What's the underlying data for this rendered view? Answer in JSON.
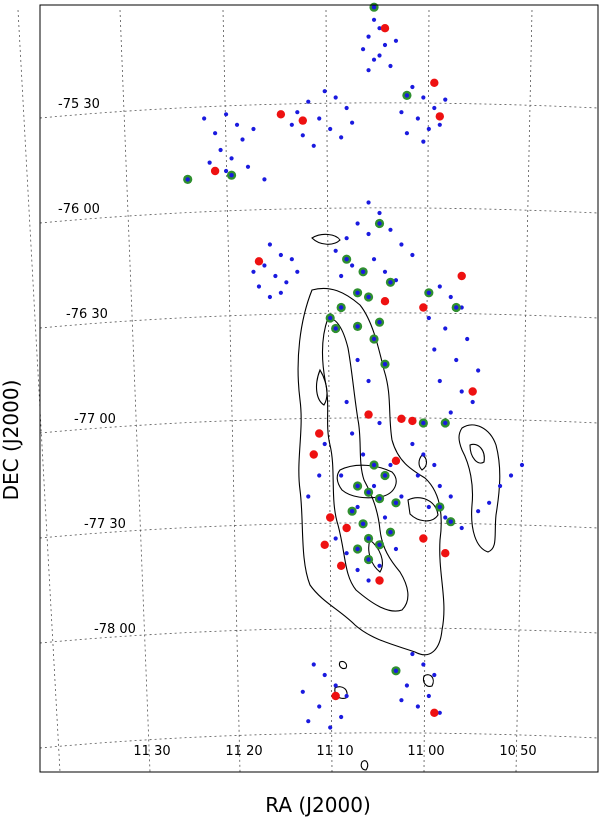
{
  "chart_data": {
    "type": "scatter",
    "xlabel": "RA (J2000)",
    "ylabel": "DEC (J2000)",
    "x_ticks": [
      "11 30",
      "11 20",
      "11 10",
      "11 00",
      "10 50"
    ],
    "y_ticks": [
      "-75 30",
      "-76 00",
      "-76 30",
      "-77 00",
      "-77 30",
      "-78 00"
    ],
    "grid": true,
    "colors": {
      "blue": "#1a1adf",
      "red": "#ee1111",
      "green": "#2f8f2f",
      "contour": "#000000"
    },
    "series": [
      {
        "color": "blue",
        "points": [
          [
            11.18,
            -75.42
          ],
          [
            11.16,
            -75.45
          ],
          [
            11.21,
            -75.47
          ],
          [
            11.23,
            -75.52
          ],
          [
            11.14,
            -75.5
          ],
          [
            11.19,
            -75.55
          ],
          [
            11.17,
            -75.6
          ],
          [
            11.22,
            -75.63
          ],
          [
            11.15,
            -75.64
          ],
          [
            11.2,
            -75.68
          ],
          [
            11.24,
            -75.58
          ],
          [
            11.13,
            -75.57
          ],
          [
            11.36,
            -75.53
          ],
          [
            11.34,
            -75.58
          ],
          [
            11.38,
            -75.62
          ],
          [
            11.33,
            -75.65
          ],
          [
            11.37,
            -75.7
          ],
          [
            11.35,
            -75.74
          ],
          [
            11.39,
            -75.76
          ],
          [
            11.32,
            -75.78
          ],
          [
            11.4,
            -75.55
          ],
          [
            11.31,
            -75.6
          ],
          [
            11.36,
            -75.8
          ],
          [
            11.29,
            -75.84
          ],
          [
            11.09,
            -75.08
          ],
          [
            11.08,
            -75.12
          ],
          [
            11.1,
            -75.16
          ],
          [
            11.07,
            -75.2
          ],
          [
            11.11,
            -75.22
          ],
          [
            11.09,
            -75.27
          ],
          [
            11.06,
            -75.3
          ],
          [
            11.1,
            -75.32
          ],
          [
            11.08,
            -75.25
          ],
          [
            11.05,
            -75.18
          ],
          [
            11.02,
            -75.4
          ],
          [
            11.0,
            -75.45
          ],
          [
            10.98,
            -75.5
          ],
          [
            11.01,
            -75.55
          ],
          [
            10.99,
            -75.6
          ],
          [
            11.03,
            -75.62
          ],
          [
            10.97,
            -75.58
          ],
          [
            11.04,
            -75.52
          ],
          [
            10.96,
            -75.46
          ],
          [
            11.0,
            -75.66
          ],
          [
            11.28,
            -76.15
          ],
          [
            11.26,
            -76.2
          ],
          [
            11.29,
            -76.25
          ],
          [
            11.27,
            -76.3
          ],
          [
            11.25,
            -76.33
          ],
          [
            11.3,
            -76.35
          ],
          [
            11.24,
            -76.22
          ],
          [
            11.23,
            -76.28
          ],
          [
            11.28,
            -76.4
          ],
          [
            11.26,
            -76.38
          ],
          [
            11.31,
            -76.28
          ],
          [
            11.1,
            -75.95
          ],
          [
            11.08,
            -76.0
          ],
          [
            11.12,
            -76.05
          ],
          [
            11.06,
            -76.08
          ],
          [
            11.14,
            -76.12
          ],
          [
            11.04,
            -76.15
          ],
          [
            11.1,
            -76.1
          ],
          [
            11.16,
            -76.18
          ],
          [
            11.02,
            -76.2
          ],
          [
            11.09,
            -76.22
          ],
          [
            11.13,
            -76.25
          ],
          [
            11.07,
            -76.28
          ],
          [
            11.05,
            -76.32
          ],
          [
            11.15,
            -76.3
          ],
          [
            10.97,
            -76.35
          ],
          [
            10.95,
            -76.4
          ],
          [
            10.93,
            -76.45
          ],
          [
            10.99,
            -76.5
          ],
          [
            10.96,
            -76.55
          ],
          [
            10.92,
            -76.6
          ],
          [
            10.98,
            -76.65
          ],
          [
            10.94,
            -76.7
          ],
          [
            10.9,
            -76.75
          ],
          [
            10.97,
            -76.8
          ],
          [
            10.93,
            -76.85
          ],
          [
            10.91,
            -76.9
          ],
          [
            10.95,
            -76.95
          ],
          [
            11.12,
            -76.7
          ],
          [
            11.1,
            -76.8
          ],
          [
            11.14,
            -76.9
          ],
          [
            11.08,
            -77.0
          ],
          [
            11.13,
            -77.05
          ],
          [
            11.11,
            -77.15
          ],
          [
            11.06,
            -77.2
          ],
          [
            11.15,
            -77.25
          ],
          [
            11.09,
            -77.3
          ],
          [
            11.04,
            -77.35
          ],
          [
            11.12,
            -77.4
          ],
          [
            11.07,
            -77.45
          ],
          [
            11.02,
            -77.1
          ],
          [
            11.0,
            -77.15
          ],
          [
            10.98,
            -77.2
          ],
          [
            11.01,
            -77.25
          ],
          [
            10.97,
            -77.3
          ],
          [
            10.95,
            -77.35
          ],
          [
            10.99,
            -77.4
          ],
          [
            10.96,
            -77.45
          ],
          [
            10.93,
            -77.5
          ],
          [
            10.9,
            -77.42
          ],
          [
            10.88,
            -77.38
          ],
          [
            10.86,
            -77.3
          ],
          [
            10.84,
            -77.25
          ],
          [
            10.82,
            -77.2
          ],
          [
            11.18,
            -77.1
          ],
          [
            11.2,
            -77.15
          ],
          [
            11.19,
            -77.25
          ],
          [
            11.21,
            -77.35
          ],
          [
            11.17,
            -77.45
          ],
          [
            11.16,
            -77.55
          ],
          [
            11.14,
            -77.62
          ],
          [
            11.12,
            -77.7
          ],
          [
            11.1,
            -77.75
          ],
          [
            11.08,
            -77.68
          ],
          [
            11.05,
            -77.6
          ],
          [
            11.2,
            -78.15
          ],
          [
            11.18,
            -78.2
          ],
          [
            11.16,
            -78.25
          ],
          [
            11.22,
            -78.28
          ],
          [
            11.19,
            -78.35
          ],
          [
            11.15,
            -78.4
          ],
          [
            11.17,
            -78.45
          ],
          [
            11.21,
            -78.42
          ],
          [
            11.14,
            -78.3
          ],
          [
            11.02,
            -78.1
          ],
          [
            11.0,
            -78.15
          ],
          [
            10.98,
            -78.2
          ],
          [
            11.03,
            -78.25
          ],
          [
            10.99,
            -78.3
          ],
          [
            11.01,
            -78.35
          ],
          [
            10.97,
            -78.38
          ],
          [
            11.04,
            -78.32
          ]
        ]
      },
      {
        "color": "red",
        "points": [
          [
            11.07,
            -75.12
          ],
          [
            10.98,
            -75.38
          ],
          [
            10.97,
            -75.54
          ],
          [
            11.22,
            -75.56
          ],
          [
            11.26,
            -75.53
          ],
          [
            11.38,
            -75.8
          ],
          [
            11.3,
            -76.23
          ],
          [
            10.93,
            -76.3
          ],
          [
            11.07,
            -76.42
          ],
          [
            11.0,
            -76.45
          ],
          [
            10.91,
            -76.85
          ],
          [
            11.1,
            -76.96
          ],
          [
            11.04,
            -76.98
          ],
          [
            11.02,
            -76.99
          ],
          [
            11.19,
            -77.05
          ],
          [
            11.2,
            -77.15
          ],
          [
            11.05,
            -77.18
          ],
          [
            11.17,
            -77.45
          ],
          [
            11.14,
            -77.5
          ],
          [
            11.0,
            -77.55
          ],
          [
            11.18,
            -77.58
          ],
          [
            10.96,
            -77.62
          ],
          [
            11.15,
            -77.68
          ],
          [
            11.08,
            -77.75
          ],
          [
            11.16,
            -78.3
          ],
          [
            10.98,
            -78.38
          ]
        ]
      },
      {
        "color": "green",
        "points": [
          [
            11.09,
            -75.02
          ],
          [
            11.03,
            -75.44
          ],
          [
            11.43,
            -75.84
          ],
          [
            11.35,
            -75.82
          ],
          [
            11.08,
            -76.05
          ],
          [
            11.14,
            -76.22
          ],
          [
            11.11,
            -76.28
          ],
          [
            11.06,
            -76.33
          ],
          [
            11.12,
            -76.38
          ],
          [
            11.1,
            -76.4
          ],
          [
            11.15,
            -76.45
          ],
          [
            11.17,
            -76.5
          ],
          [
            11.08,
            -76.52
          ],
          [
            11.12,
            -76.54
          ],
          [
            11.16,
            -76.55
          ],
          [
            11.09,
            -76.6
          ],
          [
            11.07,
            -76.72
          ],
          [
            10.99,
            -76.38
          ],
          [
            10.94,
            -76.45
          ],
          [
            10.96,
            -77.0
          ],
          [
            11.09,
            -77.2
          ],
          [
            11.07,
            -77.25
          ],
          [
            11.12,
            -77.3
          ],
          [
            11.1,
            -77.33
          ],
          [
            11.08,
            -77.36
          ],
          [
            11.05,
            -77.38
          ],
          [
            11.13,
            -77.42
          ],
          [
            11.11,
            -77.48
          ],
          [
            11.1,
            -77.55
          ],
          [
            11.08,
            -77.58
          ],
          [
            11.12,
            -77.6
          ],
          [
            11.1,
            -77.65
          ],
          [
            11.06,
            -77.52
          ],
          [
            10.97,
            -77.4
          ],
          [
            10.95,
            -77.47
          ],
          [
            11.05,
            -78.18
          ],
          [
            11.0,
            -77.0
          ]
        ]
      }
    ]
  }
}
